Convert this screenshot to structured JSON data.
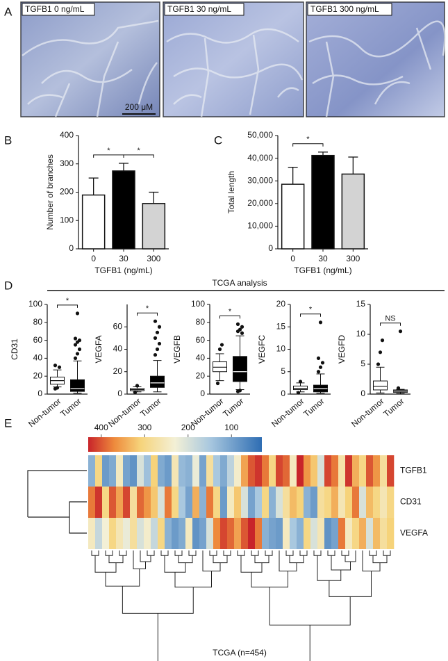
{
  "images": {
    "panel": "A",
    "labels": [
      "TGFB1 0 ng/mL",
      "TGFB1 30 ng/mL",
      "TGFB1 300 ng/mL"
    ],
    "scale_bar": "200 μM"
  },
  "tcga_section": {
    "panel": "D",
    "title": "TCGA analysis"
  },
  "chart_data": [
    {
      "type": "bar",
      "panel": "B",
      "ylabel": "Number of branches",
      "xlabel": "TGFB1 (ng/mL)",
      "categories": [
        "0",
        "30",
        "300"
      ],
      "values": [
        190,
        275,
        160
      ],
      "errors": [
        60,
        27,
        40
      ],
      "colors": [
        "#ffffff",
        "#000000",
        "#d3d3d3"
      ],
      "ylim": [
        0,
        400
      ],
      "yticks": [
        0,
        100,
        200,
        300,
        400
      ],
      "significance": [
        {
          "between": [
            "0",
            "30"
          ],
          "label": "*"
        },
        {
          "between": [
            "30",
            "300"
          ],
          "label": "*"
        }
      ]
    },
    {
      "type": "bar",
      "panel": "C",
      "ylabel": "Total length",
      "xlabel": "TGFB1 (ng/mL)",
      "categories": [
        "0",
        "30",
        "300"
      ],
      "values": [
        28500,
        41200,
        33000
      ],
      "errors": [
        7500,
        1500,
        7500
      ],
      "colors": [
        "#ffffff",
        "#000000",
        "#d3d3d3"
      ],
      "ylim": [
        0,
        50000
      ],
      "yticks": [
        0,
        {
          "value": 10000,
          "label": "10,000"
        },
        {
          "value": 20000,
          "label": "20,000"
        },
        {
          "value": 30000,
          "label": "30,000"
        },
        {
          "value": 40000,
          "label": "40,000"
        },
        {
          "value": 50000,
          "label": "50,000"
        }
      ],
      "significance": [
        {
          "between": [
            "0",
            "30"
          ],
          "label": "*"
        }
      ]
    },
    {
      "type": "box",
      "ylabel": "CD31",
      "categories": [
        "Non-tumor",
        "Tumor"
      ],
      "colors": [
        "#ffffff",
        "#000000"
      ],
      "ylim": [
        0,
        100
      ],
      "yticks": [
        0,
        20,
        40,
        60,
        80,
        100
      ],
      "boxes": [
        {
          "whisker_low": 8,
          "q1": 11,
          "median": 15,
          "q3": 19,
          "whisker_high": 27,
          "outliers": [
            6,
            7,
            30,
            32
          ]
        },
        {
          "whisker_low": 1,
          "q1": 3,
          "median": 6,
          "q3": 16,
          "whisker_high": 37,
          "outliers": [
            40,
            45,
            50,
            55,
            58,
            60,
            62,
            90
          ]
        }
      ],
      "significance": [
        {
          "between": [
            "Non-tumor",
            "Tumor"
          ],
          "label": "*"
        }
      ]
    },
    {
      "type": "box",
      "ylabel": "VEGFA",
      "categories": [
        "Non-tumor",
        "Tumor"
      ],
      "colors": [
        "#ffffff",
        "#000000"
      ],
      "ylim": [
        0,
        80
      ],
      "yticks": [
        0,
        20,
        40,
        60
      ],
      "boxes": [
        {
          "whisker_low": 2,
          "q1": 3,
          "median": 4,
          "q3": 5,
          "whisker_high": 6.5,
          "outliers": [
            1.5,
            7.5
          ]
        },
        {
          "whisker_low": 2,
          "q1": 6,
          "median": 10,
          "q3": 16,
          "whisker_high": 30,
          "outliers": [
            35,
            40,
            45,
            50,
            55,
            60,
            65
          ]
        }
      ],
      "significance": [
        {
          "between": [
            "Non-tumor",
            "Tumor"
          ],
          "label": "*"
        }
      ]
    },
    {
      "type": "box",
      "ylabel": "VEGFB",
      "categories": [
        "Non-tumor",
        "Tumor"
      ],
      "colors": [
        "#ffffff",
        "#000000"
      ],
      "ylim": [
        0,
        100
      ],
      "yticks": [
        0,
        20,
        40,
        60,
        80,
        100
      ],
      "boxes": [
        {
          "whisker_low": 15,
          "q1": 25,
          "median": 30,
          "q3": 36,
          "whisker_high": 45,
          "outliers": [
            12,
            50,
            55
          ]
        },
        {
          "whisker_low": 5,
          "q1": 14,
          "median": 25,
          "q3": 42,
          "whisker_high": 65,
          "outliers": [
            3,
            4,
            68,
            70,
            72,
            75,
            78
          ]
        }
      ],
      "significance": [
        {
          "between": [
            "Non-tumor",
            "Tumor"
          ],
          "label": "*"
        }
      ]
    },
    {
      "type": "box",
      "ylabel": "VEGFC",
      "categories": [
        "Non-tumor",
        "Tumor"
      ],
      "colors": [
        "#ffffff",
        "#000000"
      ],
      "ylim": [
        0,
        20
      ],
      "yticks": [
        0,
        5,
        10,
        15,
        20
      ],
      "boxes": [
        {
          "whisker_low": 0.5,
          "q1": 1,
          "median": 1.3,
          "q3": 1.8,
          "whisker_high": 2.5,
          "outliers": [
            0.3,
            2.8
          ]
        },
        {
          "whisker_low": 0.2,
          "q1": 0.5,
          "median": 1.2,
          "q3": 2,
          "whisker_high": 4.5,
          "outliers": [
            5,
            6,
            7,
            8,
            16
          ]
        }
      ],
      "significance": [
        {
          "between": [
            "Non-tumor",
            "Tumor"
          ],
          "label": "*"
        }
      ]
    },
    {
      "type": "box",
      "ylabel": "VEGFD",
      "categories": [
        "Non-tumor",
        "Tumor"
      ],
      "colors": [
        "#ffffff",
        "#000000"
      ],
      "ylim": [
        0,
        15
      ],
      "yticks": [
        0,
        5,
        10,
        15
      ],
      "boxes": [
        {
          "whisker_low": 0.2,
          "q1": 0.7,
          "median": 1.3,
          "q3": 2.2,
          "whisker_high": 4.5,
          "outliers": [
            5,
            7,
            9
          ]
        },
        {
          "whisker_low": 0.1,
          "q1": 0.3,
          "median": 0.5,
          "q3": 0.7,
          "whisker_high": 0.8,
          "outliers": [
            1,
            10.5
          ]
        }
      ],
      "significance": [
        {
          "between": [
            "Non-tumor",
            "Tumor"
          ],
          "label": "NS"
        }
      ]
    },
    {
      "type": "heatmap",
      "panel": "E",
      "xlabel": "TCGA (n=454)",
      "rows": [
        "TGFB1",
        "CD31",
        "VEGFA"
      ],
      "clim": [
        30,
        430
      ],
      "cticks": [
        400,
        300,
        200,
        100
      ],
      "values": [
        [
          120,
          300,
          90,
          110,
          250,
          100,
          80,
          200,
          140,
          310,
          110,
          90,
          260,
          130,
          120,
          220,
          100,
          280,
          150,
          110,
          170,
          240,
          350,
          400,
          420,
          380,
          300,
          410,
          390,
          250,
          430,
          360,
          320,
          200,
          410,
          380,
          270,
          420,
          340,
          300,
          400,
          360,
          280,
          410
        ],
        [
          380,
          420,
          300,
          400,
          350,
          410,
          280,
          390,
          360,
          320,
          200,
          380,
          300,
          150,
          100,
          340,
          120,
          380,
          300,
          90,
          250,
          320,
          200,
          100,
          150,
          300,
          120,
          200,
          280,
          330,
          310,
          120,
          90,
          280,
          300,
          340,
          260,
          310,
          380,
          200,
          330,
          300,
          260,
          300
        ],
        [
          250,
          180,
          230,
          300,
          260,
          220,
          280,
          200,
          240,
          180,
          300,
          120,
          90,
          110,
          250,
          80,
          100,
          200,
          370,
          410,
          390,
          350,
          400,
          430,
          380,
          120,
          100,
          90,
          250,
          150,
          120,
          300,
          200,
          260,
          80,
          100,
          380,
          250,
          300,
          340,
          200,
          330,
          280,
          310
        ]
      ]
    }
  ]
}
